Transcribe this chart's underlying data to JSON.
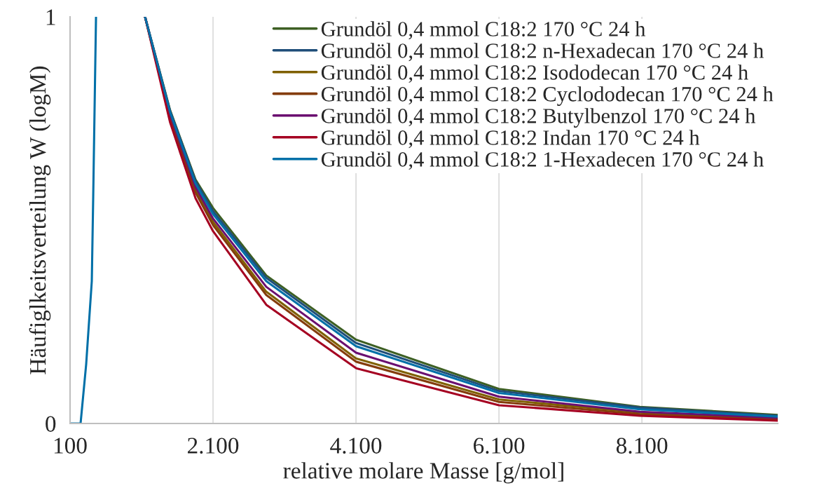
{
  "chart_data": {
    "type": "line",
    "xlabel": "relative molare Masse [g/mol]",
    "ylabel": "Häufiglkeitsverteilung W (logM)",
    "x": [
      100,
      247,
      325,
      404,
      424,
      463,
      800,
      1149,
      1500,
      1855,
      2100,
      2845,
      4100,
      6100,
      8070,
      10000
    ],
    "series": [
      {
        "name": "Grundöl 0,4 mmol C18:2 170 °C 24 h",
        "color": "#3d5f23",
        "values": [
          null,
          null,
          null,
          null,
          null,
          null,
          null,
          1,
          0.77,
          0.6,
          0.53,
          0.364,
          0.206,
          0.085,
          0.041,
          0.021
        ]
      },
      {
        "name": "Grundöl 0,4 mmol C18:2 n-Hexadecan 170 °C 24 h",
        "color": "#1f4e79",
        "values": [
          null,
          null,
          null,
          null,
          null,
          null,
          null,
          1,
          0.768,
          0.596,
          0.522,
          0.358,
          0.198,
          0.08,
          0.039,
          0.019
        ]
      },
      {
        "name": "Grundöl 0,4 mmol C18:2 Isododecan 170 °C 24 h",
        "color": "#7f6000",
        "values": [
          null,
          null,
          null,
          null,
          null,
          null,
          null,
          1,
          0.755,
          0.575,
          0.496,
          0.324,
          0.16,
          0.059,
          0.027,
          0.012
        ]
      },
      {
        "name": "Grundöl 0,4 mmol C18:2 Cyclododecan 170 °C 24 h",
        "color": "#843c0c",
        "values": [
          null,
          null,
          null,
          null,
          null,
          null,
          null,
          1,
          0.75,
          0.568,
          0.488,
          0.316,
          0.152,
          0.053,
          0.023,
          0.01
        ]
      },
      {
        "name": "Grundöl 0,4 mmol C18:2 Butylbenzol 170 °C 24 h",
        "color": "#6b0f70",
        "values": [
          null,
          null,
          null,
          null,
          null,
          null,
          null,
          1,
          0.76,
          0.582,
          0.504,
          0.336,
          0.174,
          0.066,
          0.029,
          0.014
        ]
      },
      {
        "name": "Grundöl 0,4 mmol C18:2 Indan 170 °C 24 h",
        "color": "#a50021",
        "values": [
          null,
          null,
          null,
          null,
          null,
          null,
          null,
          1,
          0.74,
          0.554,
          0.473,
          0.292,
          0.136,
          0.045,
          0.019,
          0.007
        ]
      },
      {
        "name": "Grundöl 0,4 mmol C18:2 1-Hexadecen 170 °C 24 h",
        "color": "#0070a8",
        "values": [
          0,
          0,
          0.145,
          0.35,
          0.56,
          1,
          null,
          1,
          0.765,
          0.59,
          0.515,
          0.35,
          0.19,
          0.075,
          0.035,
          0.017
        ]
      }
    ],
    "xlim": [
      100,
      10000
    ],
    "ylim": [
      0,
      1
    ],
    "xticks": [
      100,
      {
        "value": 2100,
        "label": "2.100"
      },
      {
        "value": 4100,
        "label": "4.100"
      },
      {
        "value": 6100,
        "label": "6.100"
      },
      {
        "value": 8100,
        "label": "8.100"
      }
    ],
    "yticks": [
      0,
      1
    ],
    "grid": "x",
    "legend": "top right",
    "marker": "none",
    "line_style": "solid"
  }
}
